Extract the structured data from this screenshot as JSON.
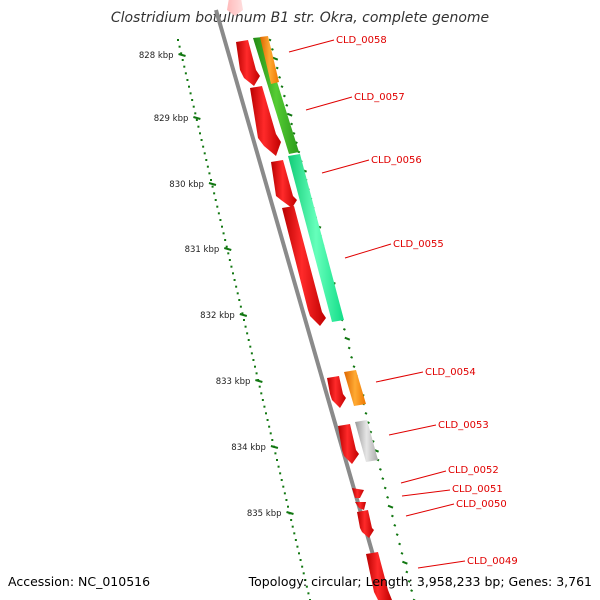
{
  "title": "Clostridium botulinum B1 str. Okra, complete genome",
  "accession_text": "Accession: NC_010516",
  "summary_text": "Topology: circular; Length: 3,958,233 bp; Genes: 3,761",
  "scale_labels": [
    "828 kbp",
    "829 kbp",
    "830 kbp",
    "831 kbp",
    "832 kbp",
    "833 kbp",
    "834 kbp",
    "835 kbp"
  ],
  "gene_labels": [
    "CLD_0058",
    "CLD_0057",
    "CLD_0056",
    "CLD_0055",
    "CLD_0054",
    "CLD_0053",
    "CLD_0052",
    "CLD_0051",
    "CLD_0050",
    "CLD_0049"
  ],
  "colors": {
    "gene_red": "#ee0000",
    "cog_green": "#33bb22",
    "cog_aqua": "#22ee99",
    "cog_orange": "#ff8800",
    "cog_gray": "#bbbbbb",
    "tick_green": "#117711",
    "backbone": "#888888",
    "label_red": "#e00000"
  }
}
